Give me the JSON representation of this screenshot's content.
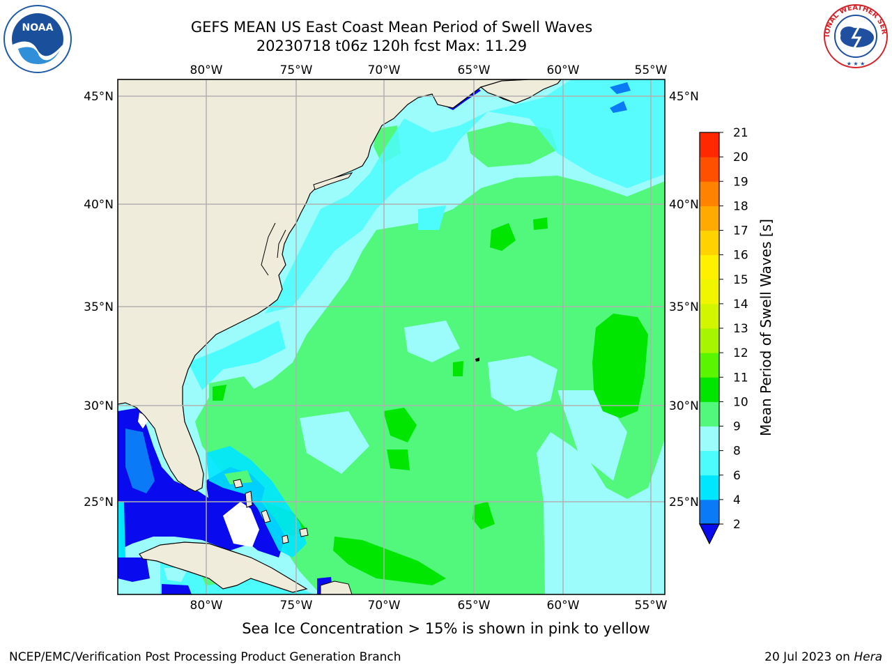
{
  "header": {
    "title_line1": "GEFS MEAN US East Coast Mean Period of Swell Waves",
    "title_line2": "20230718 t06z 120h fcst   Max: 11.29"
  },
  "logos": {
    "left": "NOAA",
    "right": "NATIONAL WEATHER SERVICE"
  },
  "map": {
    "projection": "equirectangular",
    "lon_range": [
      -85,
      -54
    ],
    "lat_range": [
      20.5,
      46
    ],
    "top_lon_labels": [
      "80°W",
      "75°W",
      "70°W",
      "65°W",
      "60°W",
      "55°W"
    ],
    "bottom_lon_labels": [
      "80°W",
      "75°W",
      "70°W",
      "65°W",
      "60°W",
      "55°W"
    ],
    "left_lat_labels": [
      "45°N",
      "40°N",
      "35°N",
      "30°N",
      "25°N"
    ],
    "right_lat_labels": [
      "45°N",
      "40°N",
      "35°N",
      "30°N",
      "25°N"
    ],
    "land_color": "#efecdc",
    "grid_color": "#b0b0b0",
    "dominant_field": "9-10 s swell period over central Atlantic, 2-6 s in Gulf of Mexico and Bahamas shadow, 10-11 s patches near 57°W"
  },
  "colorbar": {
    "label": "Mean Period of Swell Waves [s]",
    "ticks": [
      "2",
      "4",
      "6",
      "8",
      "9",
      "10",
      "11",
      "12",
      "13",
      "14",
      "15",
      "16",
      "17",
      "18",
      "19",
      "20",
      "21"
    ],
    "colors": [
      "#0a0aee",
      "#0a7af6",
      "#00e6ff",
      "#4cfcfc",
      "#9cfcfc",
      "#52f87c",
      "#00e600",
      "#5af500",
      "#a8f500",
      "#d2f500",
      "#f0f500",
      "#fff000",
      "#ffd200",
      "#ffaa00",
      "#ff8200",
      "#ff5000",
      "#ff2800",
      "#ff0000"
    ],
    "extend": "min"
  },
  "footnote": "Sea Ice Concentration > 15% is shown in pink to yellow",
  "footer": {
    "left": "NCEP/EMC/Verification Post Processing Product Generation Branch",
    "right_date": "20 Jul 2023 on",
    "right_machine": "Hera"
  }
}
